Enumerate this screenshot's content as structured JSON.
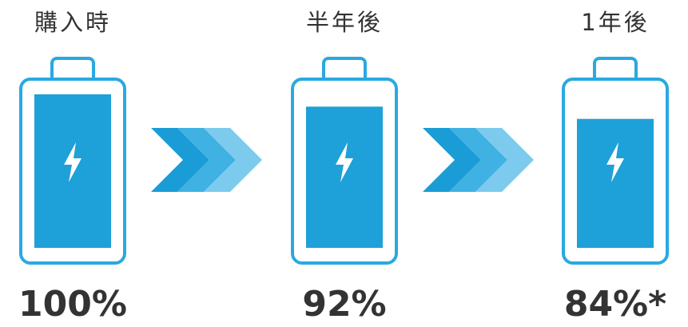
{
  "stages": [
    {
      "label": "購入時",
      "value": 100,
      "value_label": "100%"
    },
    {
      "label": "半年後",
      "value": 92,
      "value_label": "92%"
    },
    {
      "label": "1年後",
      "value": 84,
      "value_label": "84%*"
    }
  ]
}
